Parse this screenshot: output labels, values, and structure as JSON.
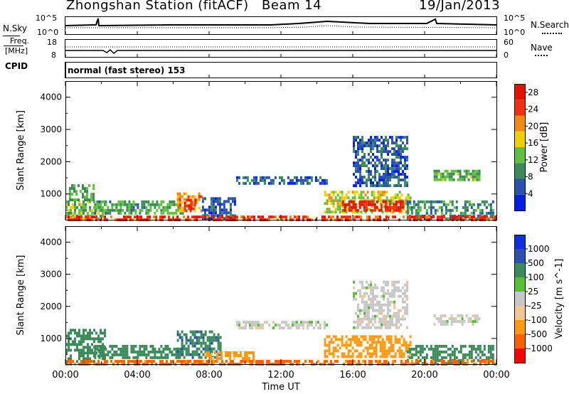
{
  "header": {
    "station": "Zhongshan Station (fitACF)",
    "beam": "Beam 14",
    "date": "19/Jan/2013"
  },
  "strip_sky": {
    "left_label": "N.Sky",
    "left_ticks": [
      "10^5",
      "10^0"
    ],
    "right_ticks": [
      "10^5",
      "10^0"
    ],
    "right_label": "N.Search"
  },
  "strip_freq": {
    "left_label_top": "Freq.",
    "left_label_unit": "[MHz]",
    "left_ticks": [
      "18",
      "8"
    ],
    "right_ticks": [
      "60",
      "0"
    ],
    "right_label": "Nave"
  },
  "strip_cpid": {
    "left_label": "CPID",
    "program": "normal (fast stereo) 153"
  },
  "colors": {
    "power": [
      "#0020e8",
      "#2a50b0",
      "#3a8a5a",
      "#62c040",
      "#f0d000",
      "#f08a10",
      "#f03010",
      "#e81000"
    ],
    "velocity": [
      "#ff0000",
      "#ff6000",
      "#ff9a10",
      "#f0c898",
      "#c8c8c8",
      "#56c030",
      "#3a8a5a",
      "#2a50b0",
      "#1030e0"
    ]
  },
  "chart_data": [
    {
      "type": "heatmap",
      "title": "",
      "xlabel": "",
      "ylabel": "Slant Range [km]",
      "xlim": [
        "00:00",
        "00:00"
      ],
      "ylim": [
        200,
        4500
      ],
      "x_ticks": [
        "00:00",
        "04:00",
        "08:00",
        "12:00",
        "16:00",
        "20:00",
        "00:00"
      ],
      "y_ticks": [
        1000,
        2000,
        3000,
        4000
      ],
      "colorbar": {
        "label": "Power [dB]",
        "ticks": [
          4,
          8,
          12,
          16,
          20,
          24,
          28
        ],
        "range": [
          0,
          30
        ]
      },
      "regions": [
        {
          "x": [
            0.0,
            2.2
          ],
          "y": [
            250,
            800
          ],
          "value": 13
        },
        {
          "x": [
            0.2,
            1.6
          ],
          "y": [
            800,
            1300
          ],
          "value": 10
        },
        {
          "x": [
            1.6,
            6.5
          ],
          "y": [
            400,
            800
          ],
          "value": 11
        },
        {
          "x": [
            6.2,
            7.6
          ],
          "y": [
            450,
            1050
          ],
          "value": 20
        },
        {
          "x": [
            6.6,
            7.2
          ],
          "y": [
            550,
            850
          ],
          "value": 26
        },
        {
          "x": [
            7.6,
            9.4
          ],
          "y": [
            250,
            900
          ],
          "value": 6
        },
        {
          "x": [
            9.5,
            14.6
          ],
          "y": [
            1350,
            1550
          ],
          "value": 6
        },
        {
          "x": [
            14.4,
            19.2
          ],
          "y": [
            450,
            1100
          ],
          "value": 16
        },
        {
          "x": [
            15.4,
            18.8
          ],
          "y": [
            450,
            800
          ],
          "value": 27
        },
        {
          "x": [
            16.0,
            19.0
          ],
          "y": [
            1300,
            2800
          ],
          "value": 6
        },
        {
          "x": [
            20.5,
            23.0
          ],
          "y": [
            1400,
            1750
          ],
          "value": 12
        },
        {
          "x": [
            19.0,
            23.8
          ],
          "y": [
            250,
            800
          ],
          "value": 9
        },
        {
          "x": [
            0.0,
            24.0
          ],
          "y": [
            200,
            330
          ],
          "value": 25
        }
      ]
    },
    {
      "type": "heatmap",
      "title": "",
      "xlabel": "Time UT",
      "ylabel": "Slant Range [km]",
      "xlim": [
        "00:00",
        "00:00"
      ],
      "ylim": [
        200,
        4500
      ],
      "x_ticks": [
        "00:00",
        "04:00",
        "08:00",
        "12:00",
        "16:00",
        "20:00",
        "00:00"
      ],
      "y_ticks": [
        1000,
        2000,
        3000,
        4000
      ],
      "colorbar": {
        "label": "Velocity [m s^-1]",
        "ticks": [
          "1000",
          "500",
          "100",
          "25",
          "-25",
          "-100",
          "-500",
          "-1000"
        ]
      },
      "regions": [
        {
          "x": [
            0.0,
            2.2
          ],
          "y": [
            250,
            1300
          ],
          "value": 300
        },
        {
          "x": [
            1.6,
            6.5
          ],
          "y": [
            400,
            800
          ],
          "value": 250
        },
        {
          "x": [
            6.2,
            8.6
          ],
          "y": [
            450,
            1250
          ],
          "value": 400
        },
        {
          "x": [
            7.8,
            10.5
          ],
          "y": [
            250,
            600
          ],
          "value": -150
        },
        {
          "x": [
            9.5,
            14.6
          ],
          "y": [
            1350,
            1550
          ],
          "value": 0
        },
        {
          "x": [
            14.4,
            19.2
          ],
          "y": [
            450,
            1100
          ],
          "value": -200
        },
        {
          "x": [
            16.0,
            19.0
          ],
          "y": [
            1300,
            2800
          ],
          "value": 0
        },
        {
          "x": [
            20.5,
            23.0
          ],
          "y": [
            1400,
            1750
          ],
          "value": 0
        },
        {
          "x": [
            19.0,
            23.8
          ],
          "y": [
            250,
            800
          ],
          "value": 300
        },
        {
          "x": [
            0.0,
            24.0
          ],
          "y": [
            200,
            330
          ],
          "value": -700
        }
      ]
    }
  ]
}
